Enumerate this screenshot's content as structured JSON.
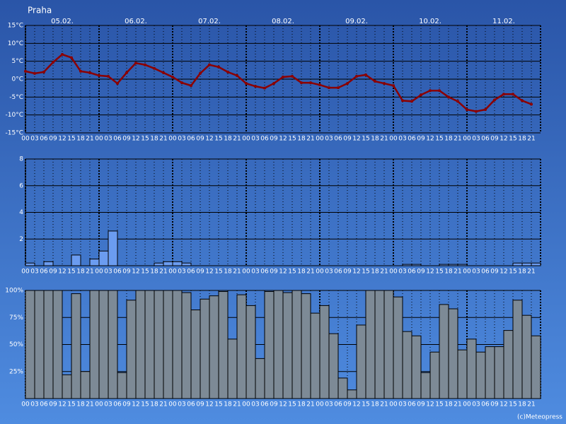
{
  "title": "Praha",
  "footer": "(c)Meteopress",
  "days": [
    "05.02.",
    "06.02.",
    "07.02.",
    "08.02.",
    "09.02.",
    "10.02.",
    "11.02."
  ],
  "hours": [
    "00",
    "03",
    "06",
    "09",
    "12",
    "15",
    "18",
    "21"
  ],
  "chart_data": [
    {
      "type": "line",
      "color": "#8b0000",
      "ylim": [
        -15,
        15
      ],
      "yticks": [
        {
          "value": -15,
          "label": "-15°C"
        },
        {
          "value": -10,
          "label": "-10°C"
        },
        {
          "value": -5,
          "label": "-5°C"
        },
        {
          "value": 0,
          "label": "0°C"
        },
        {
          "value": 5,
          "label": "5°C"
        },
        {
          "value": 10,
          "label": "10°C"
        },
        {
          "value": 15,
          "label": "15°C"
        }
      ],
      "values": [
        2.2,
        1.6,
        2,
        4.7,
        6.9,
        6,
        2.2,
        1.8,
        1,
        0.8,
        -1.2,
        1.8,
        4.5,
        4,
        3,
        1.8,
        0.6,
        -1,
        -1.8,
        1.6,
        4,
        3.4,
        2,
        1,
        -1.2,
        -2,
        -2.5,
        -1.2,
        0.6,
        0.8,
        -1,
        -1,
        -1.6,
        -2.4,
        -2.4,
        -1.2,
        0.8,
        1.2,
        -0.6,
        -1.2,
        -1.8,
        -6,
        -6.2,
        -4.4,
        -3.2,
        -3.2,
        -5,
        -6.2,
        -8.5,
        -9,
        -8.5,
        -5.8,
        -4.2,
        -4.2,
        -6,
        -7
      ]
    },
    {
      "type": "bar",
      "color": "#6b9cf0",
      "ylim": [
        0,
        8
      ],
      "yticks": [
        2,
        4,
        6,
        8
      ],
      "values": [
        0.2,
        0,
        0.3,
        0,
        0,
        0.8,
        0,
        0.5,
        1.1,
        2.6,
        0,
        0,
        0,
        0,
        0.2,
        0.3,
        0.3,
        0.2,
        0,
        0,
        0,
        0,
        0,
        0,
        0,
        0,
        0,
        0,
        0,
        0,
        0,
        0,
        0,
        0,
        0,
        0,
        0,
        0,
        0,
        0,
        0,
        0.1,
        0.1,
        0,
        0,
        0.1,
        0.1,
        0.1,
        0,
        0,
        0,
        0,
        0,
        0.2,
        0.2,
        0.2
      ]
    },
    {
      "type": "bar",
      "color": "#7d8a96",
      "ylim": [
        0,
        100
      ],
      "yticks": [
        {
          "value": 25,
          "label": "25%"
        },
        {
          "value": 50,
          "label": "50%"
        },
        {
          "value": 75,
          "label": "75%"
        },
        {
          "value": 100,
          "label": "100%"
        }
      ],
      "values": [
        100,
        100,
        100,
        100,
        22,
        97,
        25,
        100,
        100,
        100,
        24,
        91,
        100,
        100,
        100,
        100,
        100,
        98,
        82,
        92,
        95,
        99,
        55,
        96,
        86,
        37,
        99,
        100,
        98,
        100,
        97,
        79,
        86,
        60,
        19,
        8,
        68,
        100,
        100,
        100,
        94,
        62,
        58,
        24,
        43,
        87,
        83,
        45,
        55,
        43,
        48,
        48,
        63,
        91,
        77,
        58
      ]
    }
  ]
}
